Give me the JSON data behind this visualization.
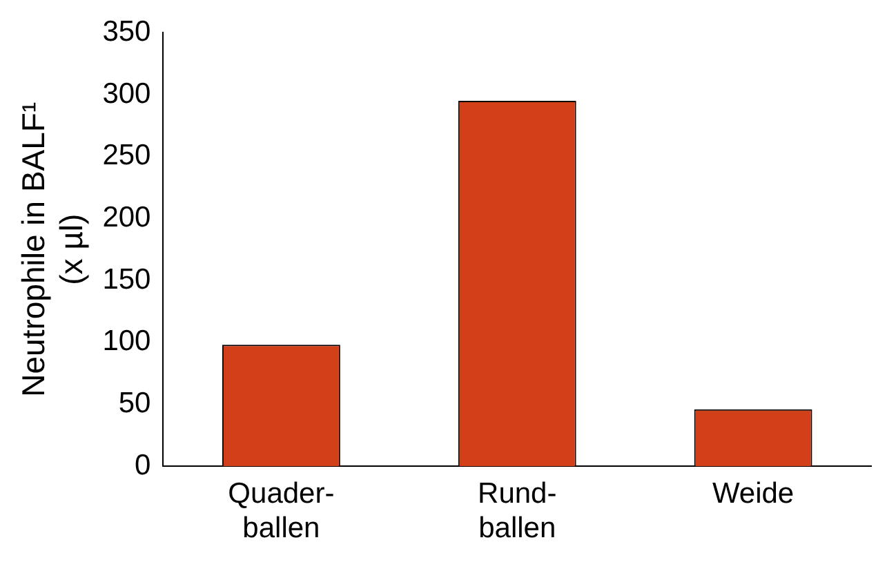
{
  "chart_data": {
    "type": "bar",
    "ylabel": "Neutrophile in BALF¹\n(x µl)",
    "categories": [
      "Quader-\nballen",
      "Rund-\nballen",
      "Weide"
    ],
    "values": [
      98,
      295,
      46
    ],
    "color": "#d2401a",
    "ylim": [
      0,
      350
    ],
    "yticks": [
      0,
      50,
      100,
      150,
      200,
      250,
      300,
      350
    ],
    "grid": false,
    "legend": false
  }
}
